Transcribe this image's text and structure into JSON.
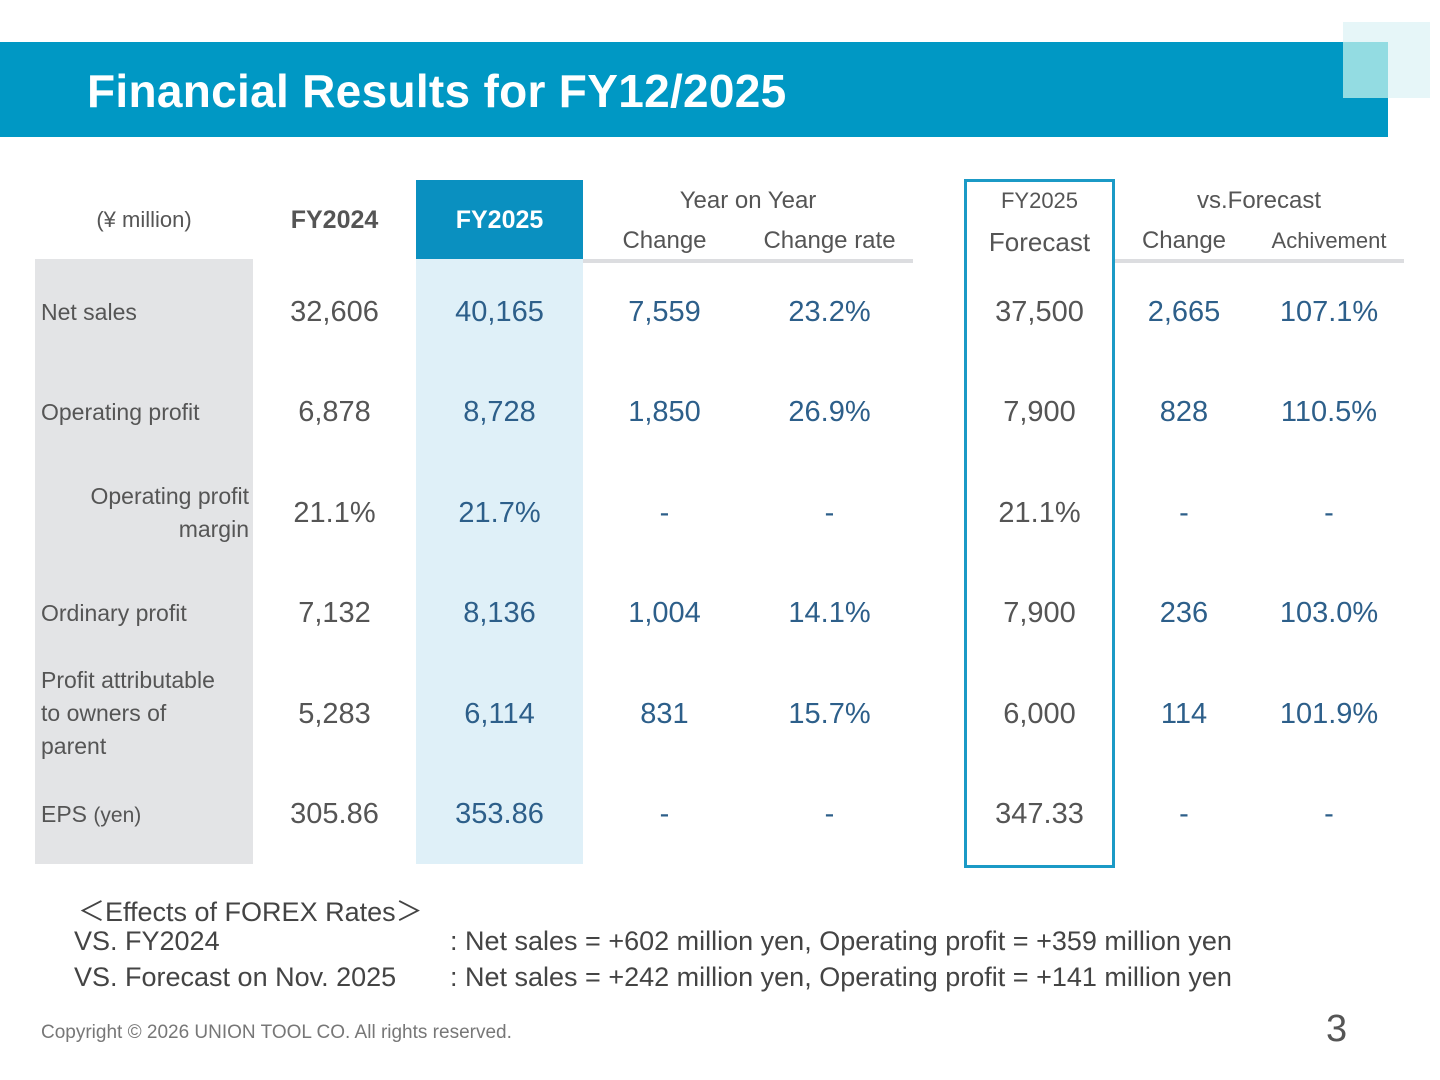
{
  "title": "Financial Results for FY12/2025",
  "table": {
    "unit_label": "(¥ million)",
    "headers": {
      "fy2024": "FY2024",
      "fy2025": "FY2025",
      "yoy_group": "Year on Year",
      "yoy_change": "Change",
      "yoy_rate": "Change rate",
      "forecast_top": "FY2025",
      "forecast_bottom": "Forecast",
      "vs_group": "vs.Forecast",
      "vs_change": "Change",
      "vs_achievement": "Achivement"
    },
    "rows": [
      {
        "label_line1": "Net sales",
        "fy2024": "32,606",
        "fy2025": "40,165",
        "yoy_change": "7,559",
        "yoy_rate": "23.2%",
        "forecast": "37,500",
        "vs_change": "2,665",
        "vs_achievement": "107.1%"
      },
      {
        "label_line1": "Operating profit",
        "fy2024": "6,878",
        "fy2025": "8,728",
        "yoy_change": "1,850",
        "yoy_rate": "26.9%",
        "forecast": "7,900",
        "vs_change": "828",
        "vs_achievement": "110.5%"
      },
      {
        "label_line1": "Operating profit",
        "label_line2": "margin",
        "fy2024": "21.1%",
        "fy2025": "21.7%",
        "yoy_change": "-",
        "yoy_rate": "-",
        "forecast": "21.1%",
        "vs_change": "-",
        "vs_achievement": "-"
      },
      {
        "label_line1": "Ordinary profit",
        "fy2024": "7,132",
        "fy2025": "8,136",
        "yoy_change": "1,004",
        "yoy_rate": "14.1%",
        "forecast": "7,900",
        "vs_change": "236",
        "vs_achievement": "103.0%"
      },
      {
        "label_line1": "Profit attributable",
        "label_line2": "to owners of",
        "label_line3": "parent",
        "fy2024": "5,283",
        "fy2025": "6,114",
        "yoy_change": "831",
        "yoy_rate": "15.7%",
        "forecast": "6,000",
        "vs_change": "114",
        "vs_achievement": "101.9%"
      },
      {
        "label_line1": "EPS",
        "label_suffix": "(yen)",
        "fy2024": "305.86",
        "fy2025": "353.86",
        "yoy_change": "-",
        "yoy_rate": "-",
        "forecast": "347.33",
        "vs_change": "-",
        "vs_achievement": "-"
      }
    ]
  },
  "notes": {
    "heading": "＜Effects of FOREX Rates＞",
    "lines": [
      {
        "label": "VS. FY2024",
        "text": ": Net sales = +602 million yen,  Operating profit = +359 million yen"
      },
      {
        "label": "VS. Forecast on Nov. 2025",
        "text": ": Net sales = +242 million yen,  Operating profit = +141 million yen"
      }
    ]
  },
  "footer": {
    "copyright": "Copyright © 2026 UNION TOOL CO. All rights reserved.",
    "page_number": "3"
  },
  "colors": {
    "title_bar": "#0098c4",
    "fy2025_header": "#0a90c0",
    "forecast_border": "#1b9ac6",
    "value_blue": "#2d5f8a"
  }
}
